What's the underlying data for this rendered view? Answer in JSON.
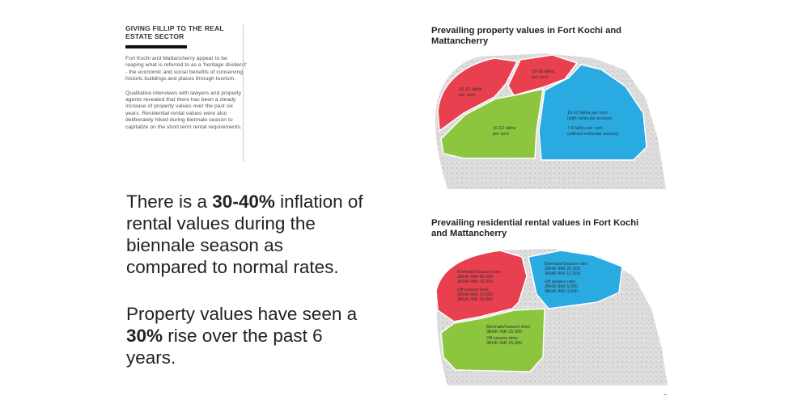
{
  "sidebar": {
    "title": "GIVING FILLIP TO THE REAL ESTATE SECTOR",
    "para1": "Fort Kochi and Mattancherry appear to be reaping what is referred to as a 'heritage dividend' - the economic and social benefits of conserving historic buildings and places through tourism.",
    "para2": "Qualitative interviews with lawyers and property agents revealed that there has been a steady increase of property values over the past six years. Residential rental values were also deliberately hiked during biennale season to capitalize on the short term rental requirements."
  },
  "statement1": {
    "pre": "There is a ",
    "bold": "30-40%",
    "post": " inflation of rental values during the biennale season as compared to normal rates."
  },
  "statement2": {
    "pre": "Property values have seen a ",
    "bold": "30%",
    "post": " rise over the past 6 years."
  },
  "map1": {
    "title": "Prevailing property values in Fort Kochi and Mattancherry",
    "zones": {
      "red_left": [
        "10-15 lakhs",
        "per cent"
      ],
      "red_right": [
        "15-20 lakhs",
        "per cent"
      ],
      "green": [
        "10-12 lakhs",
        "per cent"
      ],
      "blue": [
        "10-12 lakhs per cent",
        "(with vehicular access)",
        "7-8 lakhs per cent",
        "(without vehicular access)"
      ]
    }
  },
  "map2": {
    "title": "Prevailing residential rental values in Fort Kochi and Mattancherry",
    "zones": {
      "red": [
        "Biennale/Season time:",
        "2BHK-INR 40,000",
        "3BHK-INR 75,000",
        "Off season time:",
        "2BHK-INR 10,000",
        "3BHK-INR 25,000"
      ],
      "blue": [
        "Biennale/Season rate:",
        "2BHK-INR 20,000",
        "3BHK-INR 12,000",
        "Off season rate:",
        "2BHK-INR 5,000",
        "3BHK-INR 3,500"
      ],
      "green": [
        "Biennale/Season time:",
        "3BHK-INR 25,000",
        "Off season time:",
        "3BHK-INR 15,000"
      ]
    }
  },
  "colors": {
    "red": "#e8404e",
    "green": "#8cc63f",
    "blue": "#29abe2",
    "base": "#d9d9d9"
  }
}
